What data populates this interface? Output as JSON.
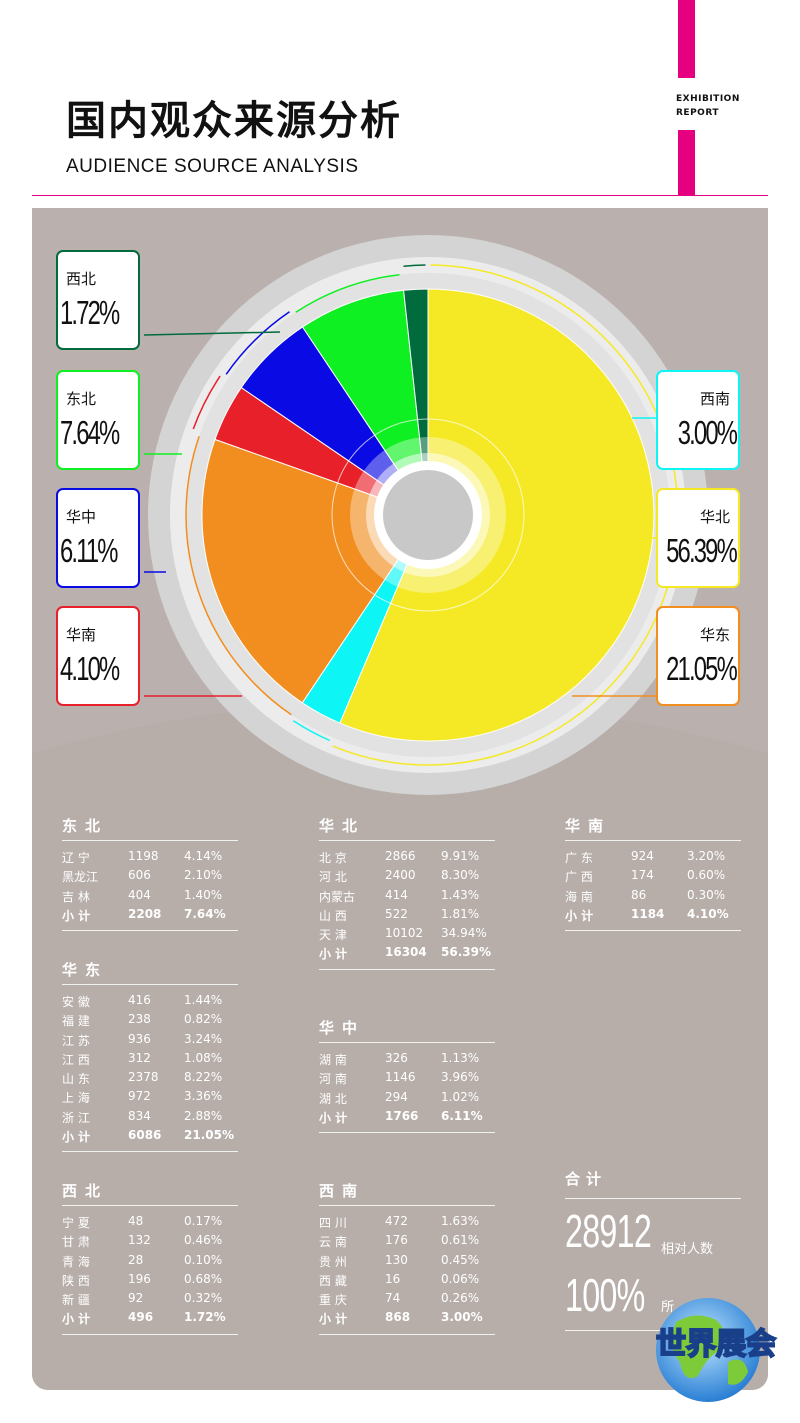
{
  "header": {
    "title": "国内观众来源分析",
    "subtitle": "AUDIENCE SOURCE ANALYSIS",
    "tag_line1": "EXHIBITION",
    "tag_line2": "REPORT"
  },
  "colors": {
    "accent": "#e4007f",
    "panel": "#bab1ae",
    "huabei": "#f5e926",
    "huadong": "#f28e1f",
    "huanan": "#e8202a",
    "huazhong": "#0a0ae5",
    "dongbei": "#0ef021",
    "xibei": "#006b3c",
    "xinan": "#0df5f5"
  },
  "chart_data": {
    "type": "pie",
    "categories": [
      "华北",
      "西南",
      "华东",
      "华南",
      "华中",
      "东北",
      "西北"
    ],
    "values": [
      56.39,
      3.0,
      21.05,
      4.1,
      6.11,
      7.64,
      1.72
    ],
    "value_labels": [
      "56.39%",
      "3.00%",
      "21.05%",
      "4.10%",
      "6.11%",
      "7.64%",
      "1.72%"
    ],
    "colors": [
      "#f5e926",
      "#0df5f5",
      "#f28e1f",
      "#e8202a",
      "#0a0ae5",
      "#0ef021",
      "#006b3c"
    ]
  },
  "tables": {
    "dongbei": {
      "title": "东北",
      "rows": [
        [
          "辽 宁",
          "1198",
          "4.14%"
        ],
        [
          "黑龙江",
          "606",
          "2.10%"
        ],
        [
          "吉 林",
          "404",
          "1.40%"
        ]
      ],
      "subtotal": [
        "小 计",
        "2208",
        "7.64%"
      ]
    },
    "huabei": {
      "title": "华北",
      "rows": [
        [
          "北 京",
          "2866",
          "9.91%"
        ],
        [
          "河 北",
          "2400",
          "8.30%"
        ],
        [
          "内蒙古",
          "414",
          "1.43%"
        ],
        [
          "山 西",
          "522",
          "1.81%"
        ],
        [
          "天 津",
          "10102",
          "34.94%"
        ]
      ],
      "subtotal": [
        "小 计",
        "16304",
        "56.39%"
      ]
    },
    "huanan": {
      "title": "华南",
      "rows": [
        [
          "广 东",
          "924",
          "3.20%"
        ],
        [
          "广 西",
          "174",
          "0.60%"
        ],
        [
          "海 南",
          "86",
          "0.30%"
        ]
      ],
      "subtotal": [
        "小 计",
        "1184",
        "4.10%"
      ]
    },
    "huadong": {
      "title": "华东",
      "rows": [
        [
          "安 徽",
          "416",
          "1.44%"
        ],
        [
          "福 建",
          "238",
          "0.82%"
        ],
        [
          "江 苏",
          "936",
          "3.24%"
        ],
        [
          "江 西",
          "312",
          "1.08%"
        ],
        [
          "山 东",
          "2378",
          "8.22%"
        ],
        [
          "上 海",
          "972",
          "3.36%"
        ],
        [
          "浙 江",
          "834",
          "2.88%"
        ]
      ],
      "subtotal": [
        "小 计",
        "6086",
        "21.05%"
      ]
    },
    "huazhong": {
      "title": "华中",
      "rows": [
        [
          "湖 南",
          "326",
          "1.13%"
        ],
        [
          "河 南",
          "1146",
          "3.96%"
        ],
        [
          "湖 北",
          "294",
          "1.02%"
        ]
      ],
      "subtotal": [
        "小 计",
        "1766",
        "6.11%"
      ]
    },
    "xibei": {
      "title": "西北",
      "rows": [
        [
          "宁 夏",
          "48",
          "0.17%"
        ],
        [
          "甘 肃",
          "132",
          "0.46%"
        ],
        [
          "青 海",
          "28",
          "0.10%"
        ],
        [
          "陕 西",
          "196",
          "0.68%"
        ],
        [
          "新 疆",
          "92",
          "0.32%"
        ]
      ],
      "subtotal": [
        "小 计",
        "496",
        "1.72%"
      ]
    },
    "xinan": {
      "title": "西南",
      "rows": [
        [
          "四 川",
          "472",
          "1.63%"
        ],
        [
          "云 南",
          "176",
          "0.61%"
        ],
        [
          "贵 州",
          "130",
          "0.45%"
        ],
        [
          "西 藏",
          "16",
          "0.06%"
        ],
        [
          "重 庆",
          "74",
          "0.26%"
        ]
      ],
      "subtotal": [
        "小 计",
        "868",
        "3.00%"
      ]
    }
  },
  "total": {
    "title": "合计",
    "count": "28912",
    "count_label": "相对人数",
    "percent": "100%",
    "percent_label": "所"
  },
  "logo": {
    "text": "世界展会"
  }
}
